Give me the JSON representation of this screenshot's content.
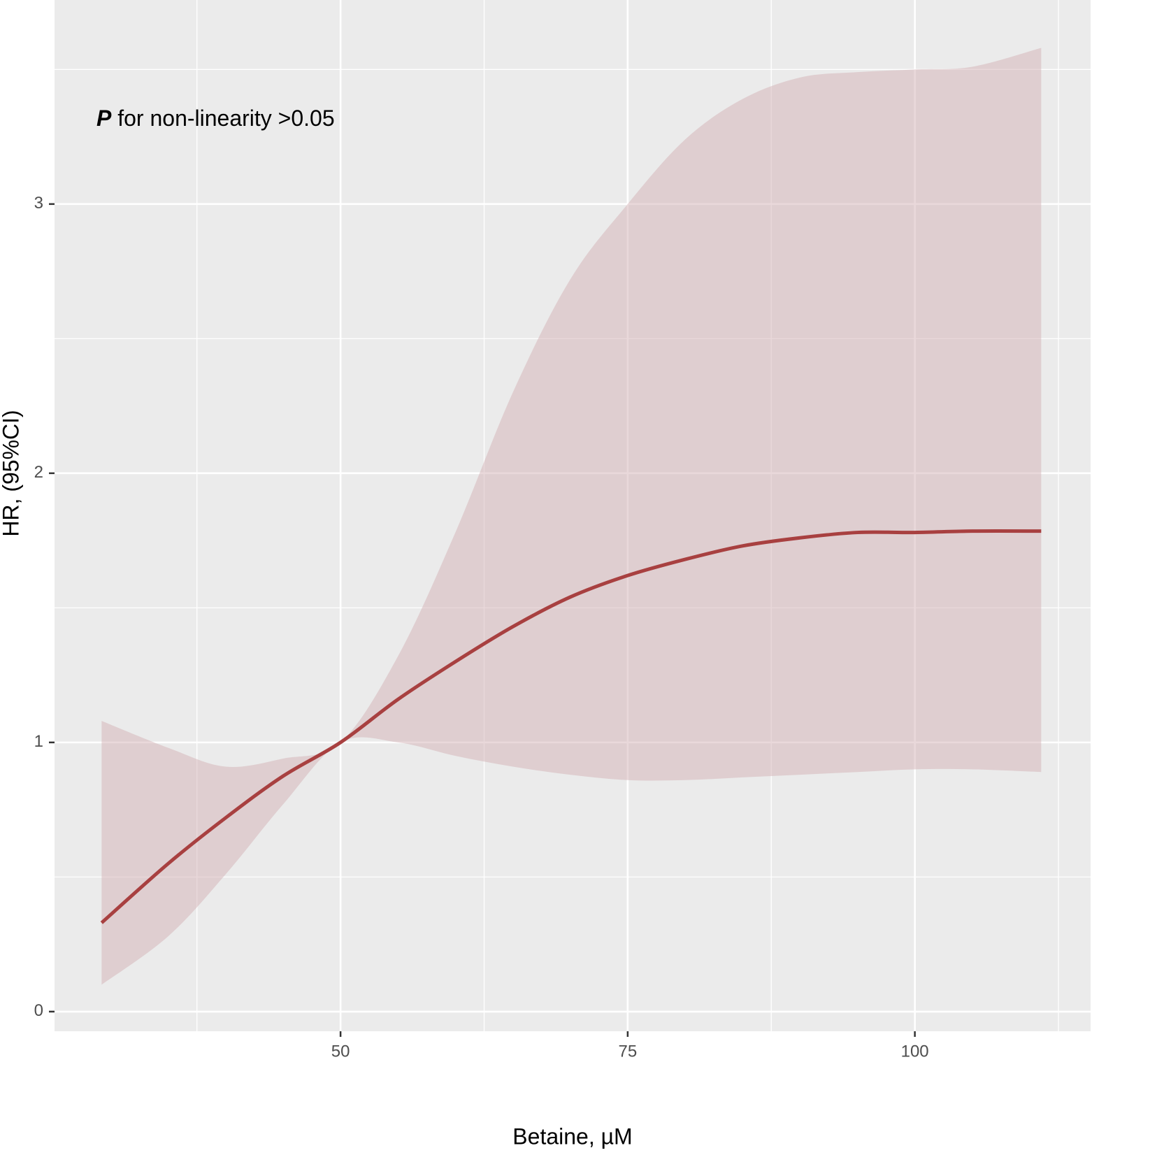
{
  "chart_data": {
    "type": "line",
    "annotation_prefix": "P",
    "annotation": "for non-linearity >0.05",
    "xlabel": "Betaine, µM",
    "ylabel": "HR, (95%CI)",
    "x": [
      29.2,
      35,
      40,
      45,
      50,
      55,
      60,
      65,
      70,
      75,
      80,
      85,
      90,
      95,
      100,
      105,
      111
    ],
    "series": [
      {
        "color": "#a84040",
        "values": [
          0.33,
          0.55,
          0.72,
          0.875,
          1.0,
          1.16,
          1.3,
          1.43,
          1.54,
          1.62,
          1.68,
          1.73,
          1.76,
          1.78,
          1.78,
          1.785,
          1.785
        ]
      }
    ],
    "band": {
      "color": "#d4b2b5",
      "upper": [
        1.08,
        0.98,
        0.91,
        0.94,
        1.0,
        1.32,
        1.78,
        2.3,
        2.72,
        3.0,
        3.24,
        3.39,
        3.47,
        3.49,
        3.5,
        3.51,
        3.58
      ],
      "lower": [
        0.1,
        0.28,
        0.51,
        0.77,
        1.0,
        1.0,
        0.95,
        0.91,
        0.88,
        0.86,
        0.86,
        0.87,
        0.88,
        0.89,
        0.9,
        0.9,
        0.89
      ]
    },
    "xlim": [
      25.1,
      115.3
    ],
    "ylim": [
      -0.073,
      3.758
    ],
    "xticks": [
      50,
      75,
      100
    ],
    "yticks": [
      0,
      1,
      2,
      3
    ],
    "x_minor_grid": [
      37.5,
      62.5,
      87.5,
      112.5
    ],
    "y_minor_grid": [
      0.5,
      1.5,
      2.5,
      3.5
    ],
    "grid": true
  }
}
